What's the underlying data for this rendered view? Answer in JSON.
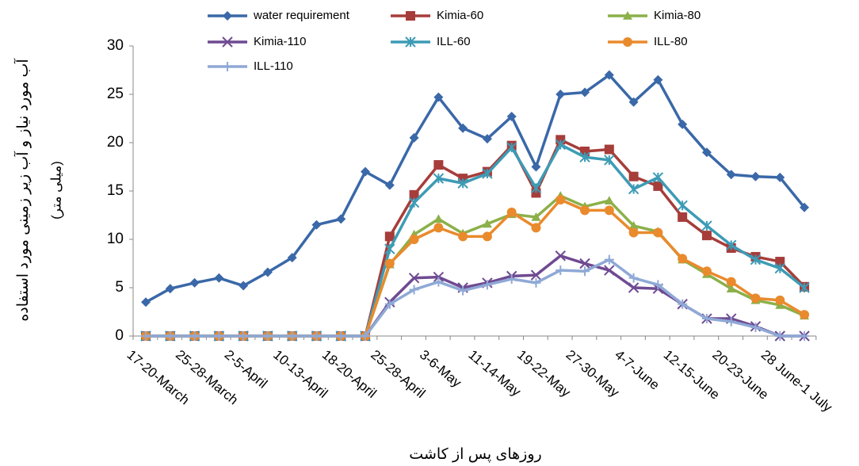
{
  "chart_data": {
    "type": "line",
    "y_label": "آب مورد نیاز و آب زیر زمینی مورد استفاده",
    "y_label_unit": "(میلی متر)",
    "x_label": "روزهای پس از کاشت",
    "categories": [
      "17-20-March",
      null,
      "25-28-March",
      null,
      "2-5-April",
      null,
      "10-13-April",
      null,
      "18-20-April",
      null,
      "25-28-April",
      null,
      "3-6-May",
      null,
      "11-14-May",
      null,
      "19-22-May",
      null,
      "27-30-May",
      null,
      "4-7-June",
      null,
      "12-15-June",
      null,
      "20-23-June",
      null,
      "28 June-1 July",
      null
    ],
    "ylim": [
      0,
      30
    ],
    "yticks": [
      0,
      5,
      10,
      15,
      20,
      25,
      30
    ],
    "grid": false,
    "series": [
      {
        "name": "water requirement",
        "color": "#3a68a8",
        "marker": "diamond",
        "values": [
          3.5,
          4.9,
          5.5,
          6.0,
          5.2,
          6.6,
          8.1,
          11.5,
          12.1,
          17.0,
          15.6,
          20.5,
          24.7,
          21.5,
          20.4,
          22.7,
          17.5,
          25.0,
          25.2,
          27.0,
          24.2,
          26.5,
          21.9,
          19.0,
          16.7,
          16.5,
          16.4,
          13.3
        ]
      },
      {
        "name": "Kimia-60",
        "color": "#a63d3a",
        "marker": "square",
        "values": [
          0,
          0,
          0,
          0,
          0,
          0,
          0,
          0,
          0,
          0,
          10.3,
          14.6,
          17.7,
          16.3,
          17.0,
          19.7,
          14.8,
          20.3,
          19.1,
          19.3,
          16.5,
          15.5,
          12.3,
          10.4,
          9.1,
          8.2,
          7.7,
          5.1
        ]
      },
      {
        "name": "Kimia-80",
        "color": "#8cb04a",
        "marker": "triangle",
        "values": [
          0,
          0,
          0,
          0,
          0,
          0,
          0,
          0,
          0,
          0,
          7.4,
          10.5,
          12.1,
          10.6,
          11.6,
          12.6,
          12.3,
          14.5,
          13.4,
          14.0,
          11.4,
          10.8,
          7.9,
          6.4,
          4.9,
          3.7,
          3.2,
          2.1
        ]
      },
      {
        "name": "Kimia-110",
        "color": "#6f4a92",
        "marker": "x",
        "values": [
          0,
          0,
          0,
          0,
          0,
          0,
          0,
          0,
          0,
          0,
          3.5,
          6.0,
          6.1,
          5.0,
          5.5,
          6.2,
          6.3,
          8.3,
          7.5,
          6.8,
          5.0,
          4.9,
          3.3,
          1.8,
          1.8,
          1.0,
          0,
          0
        ]
      },
      {
        "name": "ILL-60",
        "color": "#3d9bb5",
        "marker": "asterisk",
        "values": [
          0,
          0,
          0,
          0,
          0,
          0,
          0,
          0,
          0,
          0,
          9.0,
          13.8,
          16.3,
          15.8,
          16.8,
          19.5,
          15.3,
          19.8,
          18.5,
          18.2,
          15.2,
          16.4,
          13.5,
          11.4,
          9.4,
          7.9,
          7.0,
          5.0
        ]
      },
      {
        "name": "ILL-80",
        "color": "#e98a2d",
        "marker": "circle",
        "values": [
          0,
          0,
          0,
          0,
          0,
          0,
          0,
          0,
          0,
          0,
          7.5,
          10.0,
          11.2,
          10.3,
          10.3,
          12.8,
          11.2,
          14.1,
          13.0,
          13.0,
          10.7,
          10.7,
          8.0,
          6.7,
          5.6,
          3.9,
          3.7,
          2.2
        ]
      },
      {
        "name": "ILL-110",
        "color": "#8fa9d6",
        "marker": "plus",
        "values": [
          0,
          0,
          0,
          0,
          0,
          0,
          0,
          0,
          0,
          0,
          3.3,
          4.8,
          5.6,
          4.7,
          5.3,
          5.9,
          5.5,
          6.8,
          6.7,
          7.9,
          6.0,
          5.3,
          3.3,
          1.8,
          1.5,
          0.9,
          0,
          0
        ]
      }
    ]
  }
}
